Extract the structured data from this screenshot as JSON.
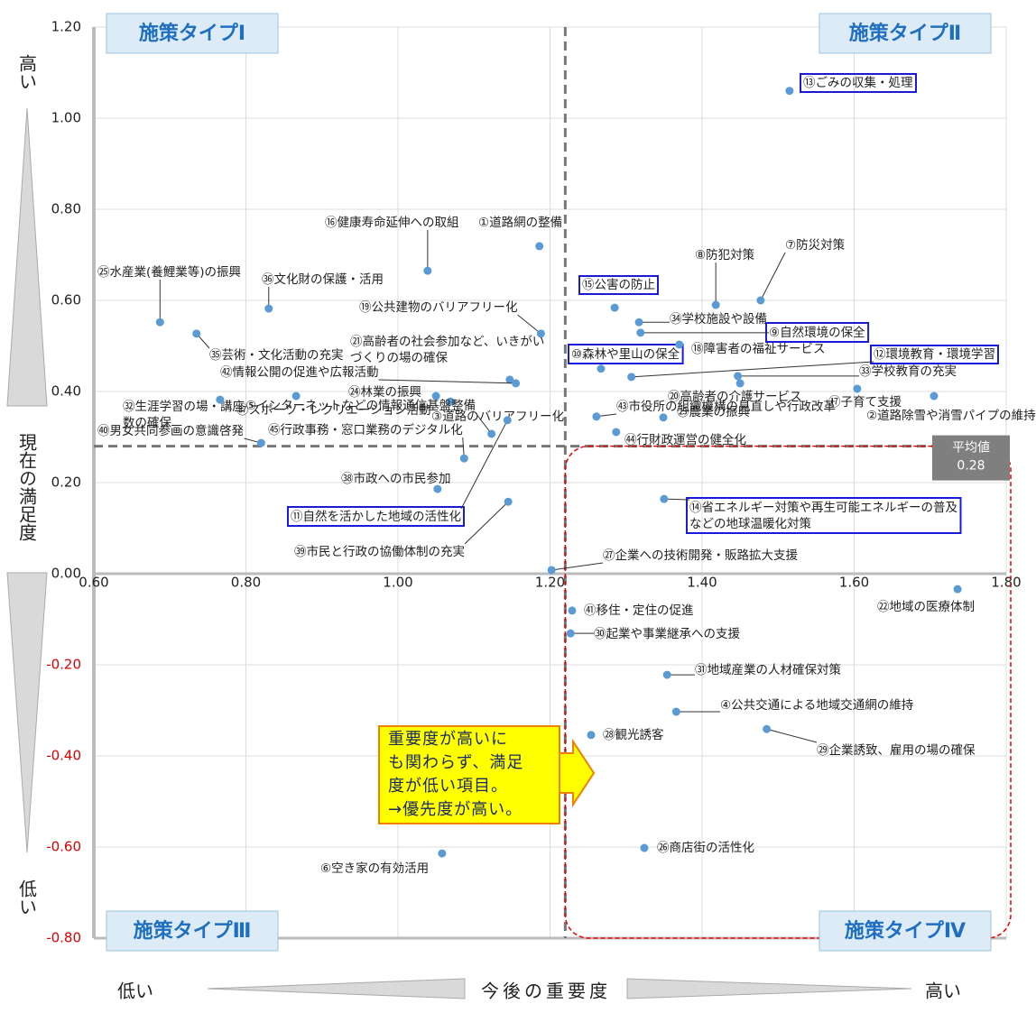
{
  "chart_data": {
    "type": "scatter",
    "x": [
      1.186,
      1.705,
      1.069,
      1.366,
      1.123,
      1.058,
      1.477,
      1.418,
      1.319,
      1.267,
      1.144,
      1.307,
      1.515,
      1.35,
      1.285,
      1.039,
      1.604,
      1.37,
      1.188,
      1.45,
      1.147,
      1.736,
      1.349,
      1.05,
      0.687,
      1.324,
      1.202,
      1.254,
      1.485,
      1.227,
      1.354,
      0.766,
      1.447,
      1.317,
      0.735,
      0.83,
      0.866,
      1.052,
      1.145,
      0.82,
      1.229,
      1.155,
      1.261,
      1.287,
      1.087
    ],
    "values": [
      0.719,
      0.39,
      0.378,
      -0.303,
      0.307,
      -0.614,
      0.6,
      0.59,
      0.529,
      0.45,
      0.337,
      0.432,
      1.06,
      0.164,
      0.584,
      0.665,
      0.406,
      0.503,
      0.527,
      0.418,
      0.426,
      -0.034,
      0.343,
      0.39,
      0.552,
      -0.602,
      0.008,
      -0.354,
      -0.341,
      -0.131,
      -0.222,
      0.382,
      0.434,
      0.552,
      0.527,
      0.582,
      0.39,
      0.186,
      0.158,
      0.287,
      -0.081,
      0.418,
      0.345,
      0.311,
      0.253
    ],
    "labels": [
      "①道路網の整備",
      "②道路除雪や消雪パイプの維持",
      "③道路のバリアフリー化",
      "④公共交通による地域交通網の維持",
      "⑤インターネットなどの情報通信基盤整備",
      "⑥空き家の有効活用",
      "⑦防災対策",
      "⑧防犯対策",
      "⑨自然環境の保全",
      "⑩森林や里山の保全",
      "⑪自然を活かした地域の活性化",
      "⑫環境教育・環境学習",
      "⑬ごみの収集・処理",
      "⑭省エネルギー対策や再生可能エネルギーの普及\nなどの地球温暖化対策",
      "⑮公害の防止",
      "⑯健康寿命延伸への取組",
      "⑰子育て支援",
      "⑱障害者の福祉サービス",
      "⑲公共建物のバリアフリー化",
      "⑳高齢者の介護サービス",
      "㉑高齢者の社会参加など、いきがい\nづくりの場の確保",
      "㉒地域の医療体制",
      "㉓農業の振興",
      "㉔林業の振興",
      "㉕水産業(養鯉業等)の振興",
      "㉖商店街の活性化",
      "㉗企業への技術開発・販路拡大支援",
      "㉘観光誘客",
      "㉙企業誘致、雇用の場の確保",
      "㉚起業や事業継承への支援",
      "㉛地域産業の人材確保対策",
      "㉜生涯学習の場・講座\n数の確保",
      "㉝学校教育の充実",
      "㉞学校施設や設備",
      "㉟芸術・文化活動の充実",
      "㊱文化財の保護・活用",
      "㊲スポーツ・レクリエーション活動",
      "㊳市政への市民参加",
      "㊴市民と行政の協働体制の充実",
      "㊵男女共同参画の意識啓発",
      "㊶移住・定住の促進",
      "㊷情報公開の促進や広報活動",
      "㊸市役所の組織機構の見直しや行政改革",
      "㊹行財政運営の健全化",
      "㊺行政事務・窓口業務のデジタル化"
    ],
    "boxed": [
      false,
      false,
      false,
      false,
      false,
      false,
      false,
      false,
      true,
      true,
      true,
      true,
      true,
      true,
      true,
      false,
      false,
      false,
      false,
      false,
      false,
      false,
      false,
      false,
      false,
      false,
      false,
      false,
      false,
      false,
      false,
      false,
      false,
      false,
      false,
      false,
      false,
      false,
      false,
      false,
      false,
      false,
      false,
      false,
      false
    ],
    "color": "#5b9bd5",
    "box_color": "#1a1adb",
    "xlim": [
      0.6,
      1.8
    ],
    "ylim": [
      -0.8,
      1.2
    ],
    "xticks": [
      {
        "value": 0.6,
        "label": "0.60"
      },
      {
        "value": 0.8,
        "label": "0.80"
      },
      {
        "value": 1.0,
        "label": "1.00"
      },
      {
        "value": 1.2,
        "label": "1.20"
      },
      {
        "value": 1.4,
        "label": "1.40"
      },
      {
        "value": 1.6,
        "label": "1.60"
      },
      {
        "value": 1.8,
        "label": "1.80"
      }
    ],
    "yticks": [
      {
        "value": -0.8,
        "label": "-0.80"
      },
      {
        "value": -0.6,
        "label": "-0.60"
      },
      {
        "value": -0.4,
        "label": "-0.40"
      },
      {
        "value": -0.2,
        "label": "-0.20"
      },
      {
        "value": 0,
        "label": "0.00"
      },
      {
        "value": 0.2,
        "label": "0.20"
      },
      {
        "value": 0.4,
        "label": "0.40"
      },
      {
        "value": 0.6,
        "label": "0.60"
      },
      {
        "value": 0.8,
        "label": "0.80"
      },
      {
        "value": 1.0,
        "label": "1.00"
      },
      {
        "value": 1.2,
        "label": "1.20"
      }
    ],
    "negative_tick_color": "#e00000",
    "grid": true,
    "mean_x": 1.22,
    "mean_y": 0.28,
    "mean_title": "平均値",
    "quadrants": [
      "施策タイプⅠ",
      "施策タイプⅡ",
      "施策タイプⅢ",
      "施策タイプⅣ"
    ],
    "y_label": "現在の満足度",
    "y_high": "高い",
    "y_low": "低い",
    "x_label": "今後の重要度",
    "x_low": "低い",
    "x_high": "高い",
    "callout": "重要度が高いに\nも関わらず、満足\n度が低い項目。\n→優先度が高い。"
  }
}
